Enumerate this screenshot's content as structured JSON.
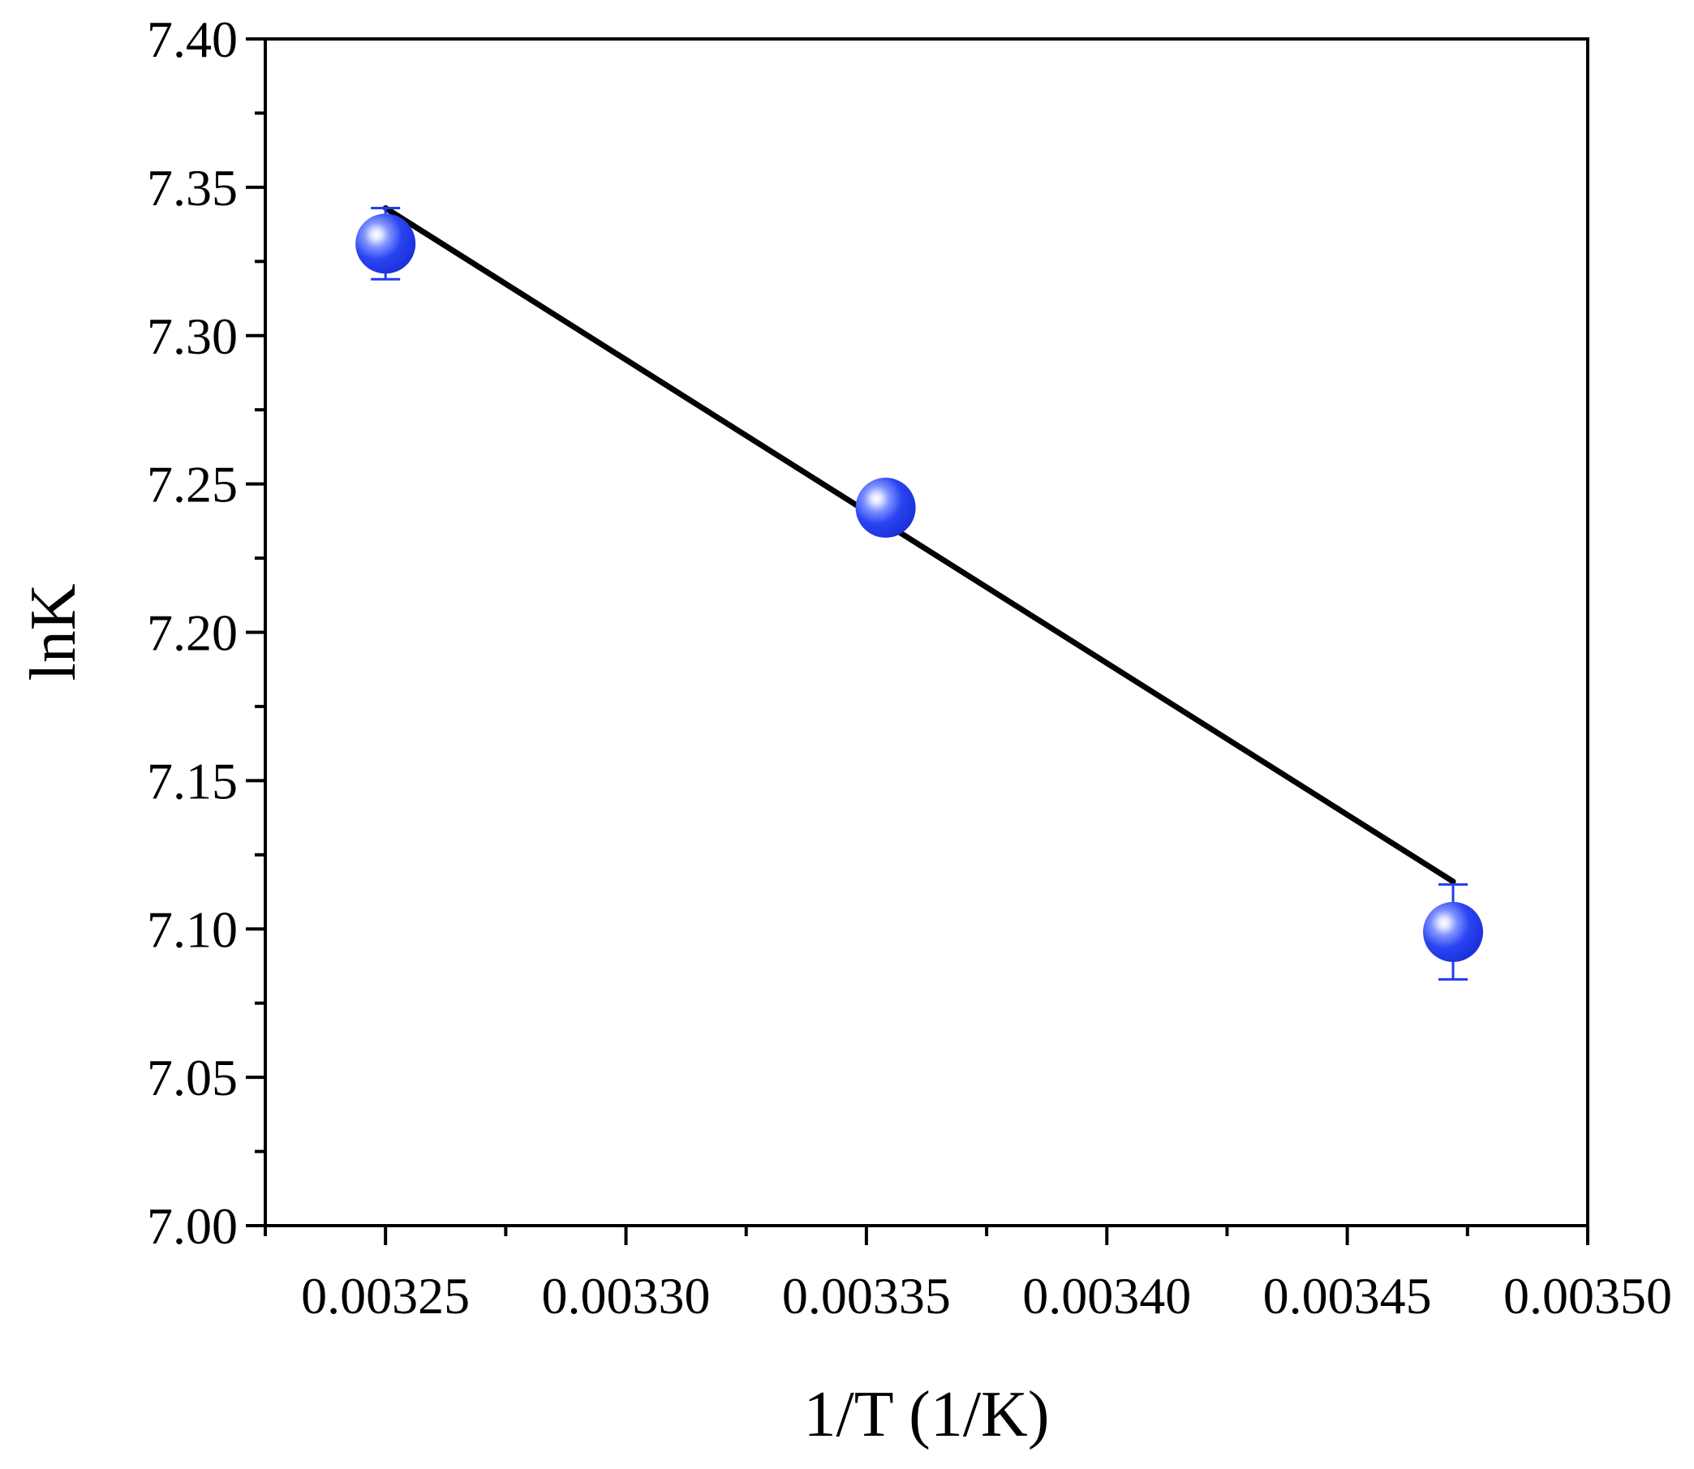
{
  "chart_data": {
    "type": "scatter",
    "xlabel": "1/T (1/K)",
    "ylabel": "lnK",
    "xlim": [
      0.003225,
      0.0035
    ],
    "ylim": [
      7.0,
      7.4
    ],
    "x_ticks": [
      "0.00325",
      "0.00330",
      "0.00335",
      "0.00340",
      "0.00345",
      "0.00350"
    ],
    "x_tick_values": [
      0.00325,
      0.0033,
      0.00335,
      0.0034,
      0.00345,
      0.0035
    ],
    "x_minor_tick_values": [
      0.003225,
      0.003275,
      0.003325,
      0.003375,
      0.003425,
      0.003475
    ],
    "y_ticks": [
      "7.00",
      "7.05",
      "7.10",
      "7.15",
      "7.20",
      "7.25",
      "7.30",
      "7.35",
      "7.40"
    ],
    "y_tick_values": [
      7.0,
      7.05,
      7.1,
      7.15,
      7.2,
      7.25,
      7.3,
      7.35,
      7.4
    ],
    "y_minor_tick_values": [
      7.025,
      7.075,
      7.125,
      7.175,
      7.225,
      7.275,
      7.325,
      7.375
    ],
    "grid": false,
    "series": [
      {
        "points": [
          {
            "x": 0.00325,
            "y": 7.331,
            "err": 0.012
          },
          {
            "x": 0.003354,
            "y": 7.242,
            "err": 0.002
          },
          {
            "x": 0.003472,
            "y": 7.099,
            "err": 0.016
          }
        ],
        "color": "#1f3cf0"
      }
    ],
    "fit_line": {
      "x": [
        0.00325,
        0.003472
      ],
      "y": [
        7.343,
        7.116
      ],
      "color": "#000000"
    }
  }
}
